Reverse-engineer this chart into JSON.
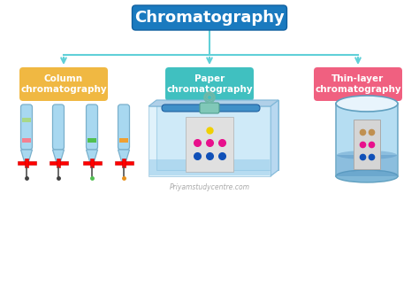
{
  "title": "Chromatography",
  "title_bg": "#1a7abf",
  "title_text_color": "white",
  "labels": [
    "Column\nchromatography",
    "Paper\nchromatography",
    "Thin-layer\nchromatography"
  ],
  "label_colors": [
    "#f0b842",
    "#40c0c0",
    "#f06080"
  ],
  "label_text_color": "white",
  "bg_color": "white",
  "arrow_color": "#60d0d8",
  "watermark": "Priyamstudycentre.com",
  "tube_color": "#a8d8f0",
  "tube_outline": "#7ab0cc",
  "band_colors": [
    [
      "#f48090",
      "#a8d888",
      "#f8d880"
    ],
    [
      "#a8d8f0"
    ],
    [
      "#70c870"
    ],
    [
      "#f0a030"
    ]
  ],
  "tip_colors": [
    "#404040",
    "#404040",
    "#50c050",
    "#e8901a"
  ],
  "paper_box_color": "#c8e8f8",
  "paper_box_outline": "#80b8d8",
  "jar_color": "#a8d8f0",
  "jar_outline": "#60a0c0"
}
